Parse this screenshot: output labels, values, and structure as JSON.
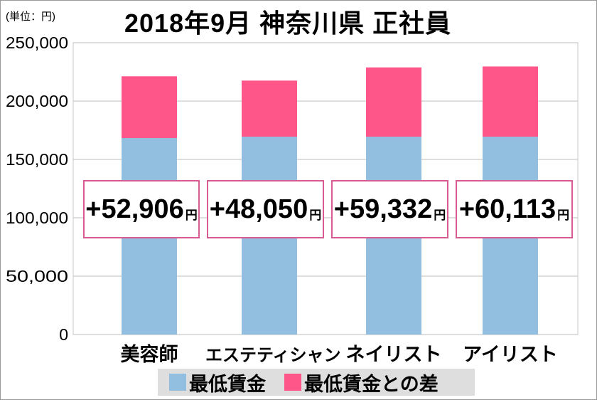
{
  "chart_data": {
    "type": "bar",
    "stacked": true,
    "title": "2018年9月 神奈川県 正社員",
    "unit_label": "(単位：円)",
    "categories": [
      "美容師",
      "エステティシャン",
      "ネイリスト",
      "アイリスト"
    ],
    "series": [
      {
        "name": "最低賃金",
        "color": "#92bfe0",
        "values": [
          168300,
          169500,
          169500,
          169500
        ]
      },
      {
        "name": "最低賃金との差",
        "color": "#ff568a",
        "values": [
          52906,
          48050,
          59332,
          60113
        ]
      }
    ],
    "annotations": [
      "+52,906",
      "+48,050",
      "+59,332",
      "+60,113"
    ],
    "annotation_unit": "円",
    "ylim": [
      0,
      250000
    ],
    "yticks": [
      "0",
      "50,000",
      "100,000",
      "150,000",
      "200,000",
      "250,000"
    ],
    "grid": true,
    "legend": "bottom"
  }
}
